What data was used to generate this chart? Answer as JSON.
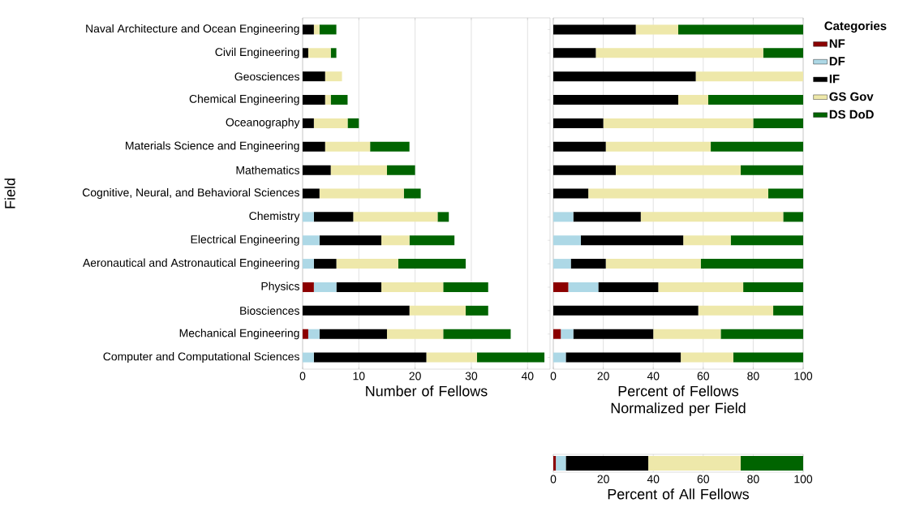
{
  "chart_data": [
    {
      "type": "bar",
      "orientation": "horizontal",
      "stacked": true,
      "ylabel": "Field",
      "xlabel": "Number of Fellows",
      "xlim": [
        0,
        44
      ],
      "xticks": [
        0,
        10,
        20,
        30,
        40
      ],
      "grid": "x",
      "categories": [
        "Naval Architecture and Ocean Engineering",
        "Civil Engineering",
        "Geosciences",
        "Chemical Engineering",
        "Oceanography",
        "Materials Science and Engineering",
        "Mathematics",
        "Cognitive, Neural, and Behavioral Sciences",
        "Chemistry",
        "Electrical Engineering",
        "Aeronautical and Astronautical Engineering",
        "Physics",
        "Biosciences",
        "Mechanical Engineering",
        "Computer and Computational Sciences"
      ],
      "series": [
        {
          "color": "#8b0000",
          "values": [
            0,
            0,
            0,
            0,
            0,
            0,
            0,
            0,
            0,
            0,
            0,
            2,
            0,
            1,
            0
          ]
        },
        {
          "color": "#add8e6",
          "values": [
            0,
            0,
            0,
            0,
            0,
            0,
            0,
            0,
            2,
            3,
            2,
            4,
            0,
            2,
            2
          ]
        },
        {
          "color": "#000000",
          "values": [
            2,
            1,
            4,
            4,
            2,
            4,
            5,
            3,
            7,
            11,
            4,
            8,
            19,
            12,
            20
          ]
        },
        {
          "color": "#eee8aa",
          "values": [
            1,
            4,
            3,
            1,
            6,
            8,
            10,
            15,
            15,
            5,
            11,
            11,
            10,
            10,
            9
          ]
        },
        {
          "color": "#006400",
          "values": [
            3,
            1,
            0,
            3,
            2,
            7,
            5,
            3,
            2,
            8,
            12,
            8,
            4,
            12,
            12
          ]
        }
      ]
    },
    {
      "type": "bar",
      "orientation": "horizontal",
      "stacked": true,
      "xlabel": "Percent of Fellows Normalized per Field",
      "xlim": [
        0,
        100
      ],
      "xticks": [
        0,
        20,
        40,
        60,
        80,
        100
      ],
      "grid": "x",
      "tick_labels": "x",
      "legend": "right",
      "legend_title": "Categories",
      "categories": [
        null,
        null,
        null,
        null,
        null,
        null,
        null,
        null,
        null,
        null,
        null,
        null,
        null,
        null,
        null
      ],
      "series": [
        {
          "name": "NF",
          "color": "#8b0000",
          "values": [
            0,
            0,
            0,
            0,
            0,
            0,
            0,
            0,
            0,
            0,
            0,
            6,
            0,
            3,
            0
          ]
        },
        {
          "name": "DF",
          "color": "#add8e6",
          "values": [
            0,
            0,
            0,
            0,
            0,
            0,
            0,
            0,
            8,
            11,
            7,
            12,
            0,
            5,
            5
          ]
        },
        {
          "name": "IF",
          "color": "#000000",
          "values": [
            33,
            17,
            57,
            50,
            20,
            21,
            25,
            14,
            27,
            41,
            14,
            24,
            58,
            32,
            46
          ]
        },
        {
          "name": "GS Gov",
          "color": "#eee8aa",
          "values": [
            17,
            67,
            43,
            12,
            60,
            42,
            50,
            72,
            57,
            19,
            38,
            34,
            30,
            27,
            21
          ]
        },
        {
          "name": "DS DoD",
          "color": "#006400",
          "values": [
            50,
            16,
            0,
            38,
            20,
            37,
            25,
            14,
            8,
            29,
            41,
            24,
            12,
            33,
            28
          ]
        }
      ]
    },
    {
      "type": "bar",
      "orientation": "horizontal",
      "stacked": true,
      "xlabel": "Percent of All Fellows",
      "xlim": [
        0,
        100
      ],
      "xticks": [
        0,
        20,
        40,
        60,
        80,
        100
      ],
      "tick_labels": "x",
      "categories": [
        null
      ],
      "series": [
        {
          "color": "#8b0000",
          "values": [
            1
          ]
        },
        {
          "color": "#add8e6",
          "values": [
            4
          ]
        },
        {
          "color": "#000000",
          "values": [
            33
          ]
        },
        {
          "color": "#eee8aa",
          "values": [
            37
          ]
        },
        {
          "color": "#006400",
          "values": [
            25
          ]
        }
      ]
    }
  ]
}
